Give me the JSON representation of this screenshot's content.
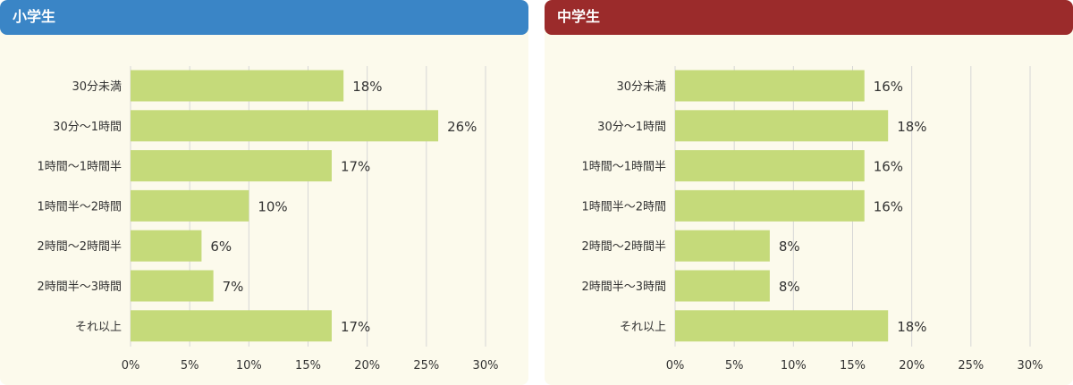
{
  "colors": {
    "elementary_header": "#3a85c6",
    "junior_header": "#9b2b2b",
    "bar": "#c5da7a",
    "grid": "#d6d6d6",
    "panel_bg": "#fcfaec"
  },
  "panels": [
    {
      "title": "小学生"
    },
    {
      "title": "中学生"
    }
  ],
  "chart_data": [
    {
      "type": "bar",
      "title": "小学生",
      "orientation": "horizontal",
      "categories": [
        "30分未満",
        "30分〜1時間",
        "1時間〜1時間半",
        "1時間半〜2時間",
        "2時間〜2時間半",
        "2時間半〜3時間",
        "それ以上"
      ],
      "values": [
        18,
        26,
        17,
        10,
        6,
        7,
        17
      ],
      "value_labels": [
        "18%",
        "26%",
        "17%",
        "10%",
        "6%",
        "7%",
        "17%"
      ],
      "xlim": [
        0,
        30
      ],
      "xticks": [
        "0%",
        "5%",
        "10%",
        "15%",
        "20%",
        "25%",
        "30%"
      ],
      "grid": true
    },
    {
      "type": "bar",
      "title": "中学生",
      "orientation": "horizontal",
      "categories": [
        "30分未満",
        "30分〜1時間",
        "1時間〜1時間半",
        "1時間半〜2時間",
        "2時間〜2時間半",
        "2時間半〜3時間",
        "それ以上"
      ],
      "values": [
        16,
        18,
        16,
        16,
        8,
        8,
        18
      ],
      "value_labels": [
        "16%",
        "18%",
        "16%",
        "16%",
        "8%",
        "8%",
        "18%"
      ],
      "xlim": [
        0,
        30
      ],
      "xticks": [
        "0%",
        "5%",
        "10%",
        "15%",
        "20%",
        "25%",
        "30%"
      ],
      "grid": true
    }
  ]
}
